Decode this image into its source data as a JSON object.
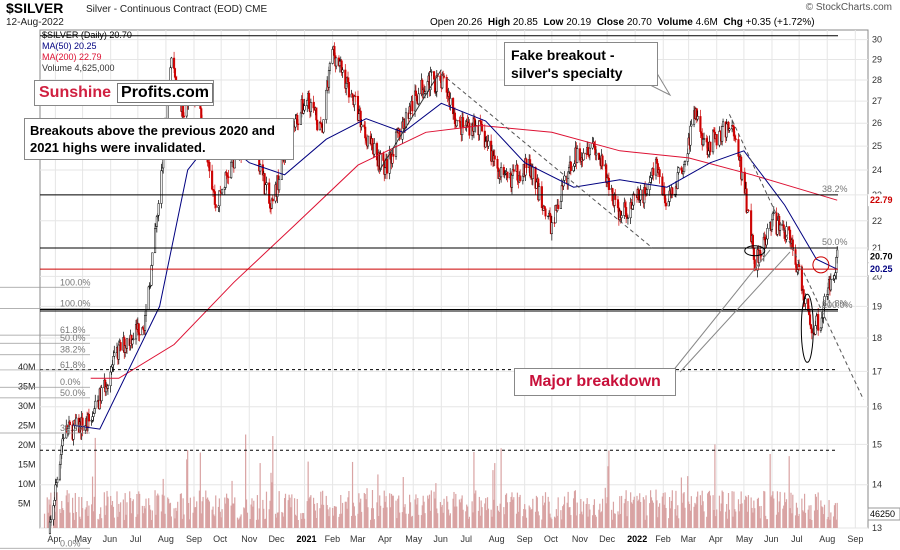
{
  "header": {
    "ticker": "$SILVER",
    "subtitle": "Silver - Continuous Contract (EOD)  CME",
    "date": "12-Aug-2022",
    "copyright": "© StockCharts.com",
    "open_label": "Open",
    "open": "20.26",
    "high_label": "High",
    "high": "20.85",
    "low_label": "Low",
    "low": "20.19",
    "close_label": "Close",
    "close": "20.70",
    "volume_label": "Volume",
    "volume": "4.6M",
    "chg_label": "Chg",
    "chg": "+0.35 (+1.72%)"
  },
  "legend": {
    "price": "$SILVER (Daily) 20.70",
    "ma50": "MA(50) 20.25",
    "ma200": "MA(200) 22.79",
    "volume": "Volume 4,625,000"
  },
  "logo": {
    "part1": "Sunshine",
    "part2": "Profits.com"
  },
  "annotations": {
    "breakouts": "Breakouts above the previous 2020 and 2021 highs were invalidated.",
    "fake": "Fake breakout - silver's specialty",
    "major": "Major breakdown"
  },
  "colors": {
    "bull": "#000000",
    "bear": "#cc0000",
    "ma50": "#000080",
    "ma200": "#dd1133",
    "volume": "#d9a3a3",
    "grid": "#e6e6e6",
    "hline": "#000000",
    "accent_red": "#c8103a"
  },
  "chart_data": {
    "type": "candlestick",
    "title": "$SILVER Silver - Continuous Contract (EOD) CME",
    "y_scale": "log",
    "ylim": [
      13,
      30.5
    ],
    "y_ticks": [
      "30",
      "29",
      "28",
      "27",
      "26",
      "25",
      "24",
      "23",
      "22",
      "21",
      "20",
      "19",
      "18",
      "17",
      "16",
      "15",
      "14",
      "13"
    ],
    "x_ticks": [
      "Apr",
      "May",
      "Jun",
      "Jul",
      "Aug",
      "Sep",
      "Oct",
      "Nov",
      "Dec",
      "2021",
      "Feb",
      "Mar",
      "Apr",
      "May",
      "Jun",
      "Jul",
      "Aug",
      "Sep",
      "Oct",
      "Nov",
      "Dec",
      "2022",
      "Feb",
      "Mar",
      "Apr",
      "May",
      "Jun",
      "Jul",
      "Aug",
      "Sep"
    ],
    "volume_ticks": [
      "40M",
      "35M",
      "30M",
      "25M",
      "20M",
      "15M",
      "10M",
      "5M"
    ],
    "price_anchors": [
      {
        "x": "2020-03-20",
        "y": 12.0
      },
      {
        "x": "2020-04-10",
        "y": 15.3
      },
      {
        "x": "2020-05-10",
        "y": 15.6
      },
      {
        "x": "2020-06-10",
        "y": 17.6
      },
      {
        "x": "2020-07-10",
        "y": 18.6
      },
      {
        "x": "2020-07-25",
        "y": 22.8
      },
      {
        "x": "2020-08-07",
        "y": 29.0
      },
      {
        "x": "2020-08-20",
        "y": 26.5
      },
      {
        "x": "2020-09-05",
        "y": 27.5
      },
      {
        "x": "2020-09-25",
        "y": 22.5
      },
      {
        "x": "2020-10-15",
        "y": 24.5
      },
      {
        "x": "2020-11-05",
        "y": 25.5
      },
      {
        "x": "2020-11-25",
        "y": 22.3
      },
      {
        "x": "2020-12-15",
        "y": 25.5
      },
      {
        "x": "2021-01-05",
        "y": 27.2
      },
      {
        "x": "2021-01-20",
        "y": 25.5
      },
      {
        "x": "2021-02-01",
        "y": 29.5
      },
      {
        "x": "2021-02-20",
        "y": 27.5
      },
      {
        "x": "2021-03-10",
        "y": 25.5
      },
      {
        "x": "2021-03-31",
        "y": 24.0
      },
      {
        "x": "2021-04-20",
        "y": 26.0
      },
      {
        "x": "2021-05-15",
        "y": 28.0
      },
      {
        "x": "2021-06-05",
        "y": 27.8
      },
      {
        "x": "2021-06-20",
        "y": 25.8
      },
      {
        "x": "2021-07-10",
        "y": 26.0
      },
      {
        "x": "2021-08-10",
        "y": 23.5
      },
      {
        "x": "2021-09-05",
        "y": 24.2
      },
      {
        "x": "2021-09-30",
        "y": 21.8
      },
      {
        "x": "2021-10-25",
        "y": 24.5
      },
      {
        "x": "2021-11-15",
        "y": 25.2
      },
      {
        "x": "2021-12-15",
        "y": 22.2
      },
      {
        "x": "2022-01-10",
        "y": 23.0
      },
      {
        "x": "2022-01-25",
        "y": 24.2
      },
      {
        "x": "2022-02-05",
        "y": 22.5
      },
      {
        "x": "2022-02-25",
        "y": 24.5
      },
      {
        "x": "2022-03-08",
        "y": 26.5
      },
      {
        "x": "2022-03-20",
        "y": 25.0
      },
      {
        "x": "2022-04-18",
        "y": 26.0
      },
      {
        "x": "2022-05-05",
        "y": 22.5
      },
      {
        "x": "2022-05-13",
        "y": 20.5
      },
      {
        "x": "2022-06-01",
        "y": 22.0
      },
      {
        "x": "2022-06-20",
        "y": 21.5
      },
      {
        "x": "2022-07-05",
        "y": 19.5
      },
      {
        "x": "2022-07-14",
        "y": 18.3
      },
      {
        "x": "2022-07-25",
        "y": 18.6
      },
      {
        "x": "2022-08-12",
        "y": 20.7
      }
    ],
    "ma50_anchors": [
      {
        "x": "2020-04-20",
        "y": 15.5
      },
      {
        "x": "2020-05-20",
        "y": 15.4
      },
      {
        "x": "2020-06-20",
        "y": 17.0
      },
      {
        "x": "2020-07-25",
        "y": 19.0
      },
      {
        "x": "2020-08-25",
        "y": 24.0
      },
      {
        "x": "2020-09-25",
        "y": 25.5
      },
      {
        "x": "2020-11-01",
        "y": 24.3
      },
      {
        "x": "2020-12-10",
        "y": 23.8
      },
      {
        "x": "2021-01-25",
        "y": 25.3
      },
      {
        "x": "2021-03-10",
        "y": 26.2
      },
      {
        "x": "2021-04-20",
        "y": 25.6
      },
      {
        "x": "2021-06-01",
        "y": 26.9
      },
      {
        "x": "2021-07-20",
        "y": 26.1
      },
      {
        "x": "2021-09-01",
        "y": 24.3
      },
      {
        "x": "2021-10-25",
        "y": 23.3
      },
      {
        "x": "2021-12-15",
        "y": 23.6
      },
      {
        "x": "2022-02-05",
        "y": 23.3
      },
      {
        "x": "2022-03-25",
        "y": 24.3
      },
      {
        "x": "2022-05-01",
        "y": 24.8
      },
      {
        "x": "2022-06-15",
        "y": 22.6
      },
      {
        "x": "2022-07-20",
        "y": 20.6
      },
      {
        "x": "2022-08-12",
        "y": 20.25
      }
    ],
    "ma200_anchors": [
      {
        "x": "2020-05-10",
        "y": 16.8
      },
      {
        "x": "2020-06-10",
        "y": 16.8
      },
      {
        "x": "2020-08-10",
        "y": 17.8
      },
      {
        "x": "2020-10-15",
        "y": 19.8
      },
      {
        "x": "2020-12-20",
        "y": 21.8
      },
      {
        "x": "2021-03-01",
        "y": 24.2
      },
      {
        "x": "2021-05-15",
        "y": 25.6
      },
      {
        "x": "2021-07-15",
        "y": 25.9
      },
      {
        "x": "2021-10-01",
        "y": 25.6
      },
      {
        "x": "2021-12-15",
        "y": 24.8
      },
      {
        "x": "2022-03-01",
        "y": 24.5
      },
      {
        "x": "2022-05-10",
        "y": 23.8
      },
      {
        "x": "2022-08-12",
        "y": 22.79
      }
    ],
    "horizontal_lines": [
      {
        "y": 30.2,
        "style": "solid"
      },
      {
        "y": 23.0,
        "style": "solid",
        "label": "38.2%"
      },
      {
        "y": 21.0,
        "style": "solid",
        "label": "50.0%"
      },
      {
        "y": 20.25,
        "style": "solid",
        "color": "#cc0000"
      },
      {
        "y": 18.9,
        "style": "solid",
        "label": "61.8%"
      },
      {
        "y": 18.85,
        "style": "solid",
        "label": "100.0%"
      },
      {
        "y": 17.05,
        "style": "dashed"
      },
      {
        "y": 14.85,
        "style": "dashed"
      }
    ],
    "fib_left": [
      {
        "label": "100.0%",
        "y": 19.7
      },
      {
        "label": "100.0%",
        "y": 19.0
      },
      {
        "label": "61.8%",
        "y": 18.15
      },
      {
        "label": "50.0%",
        "y": 17.9
      },
      {
        "label": "38.2%",
        "y": 17.55
      },
      {
        "label": "61.8%",
        "y": 17.1
      },
      {
        "label": "0.0%",
        "y": 16.6
      },
      {
        "label": "50.0%",
        "y": 16.3
      },
      {
        "label": "38.2%",
        "y": 15.35
      },
      {
        "label": "0.0%",
        "y": 12.6
      },
      {
        "label": "100.0%",
        "y": 12.15
      }
    ],
    "right_labels": {
      "close": "20.70",
      "ma50": "20.25",
      "ma200": "22.79",
      "volume": "4625000",
      "volume_short": "46250"
    }
  }
}
